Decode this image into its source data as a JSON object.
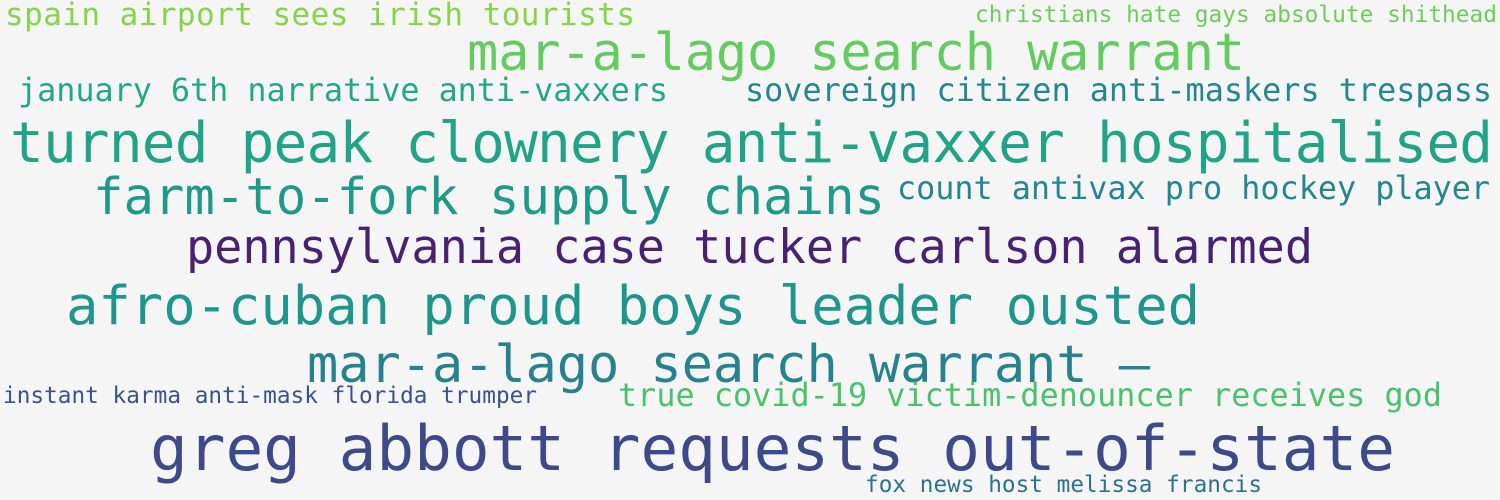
{
  "phrases": [
    "spain airport sees irish tourists",
    "christians hate gays absolute shithead",
    "mar-a-lago search warrant",
    "january 6th narrative anti-vaxxers",
    "sovereign citizen anti-maskers trespass",
    "turned peak clownery anti-vaxxer hospitalised",
    "farm-to-fork supply chains",
    "count antivax pro hockey player",
    "pennsylvania case tucker carlson alarmed",
    "afro-cuban proud boys leader ousted",
    "mar-a-lago search warrant —",
    "instant karma anti-mask florida trumper",
    "true covid-19 victim-denouncer receives god",
    "greg abbott requests out-of-state",
    "fox news host melissa francis"
  ]
}
